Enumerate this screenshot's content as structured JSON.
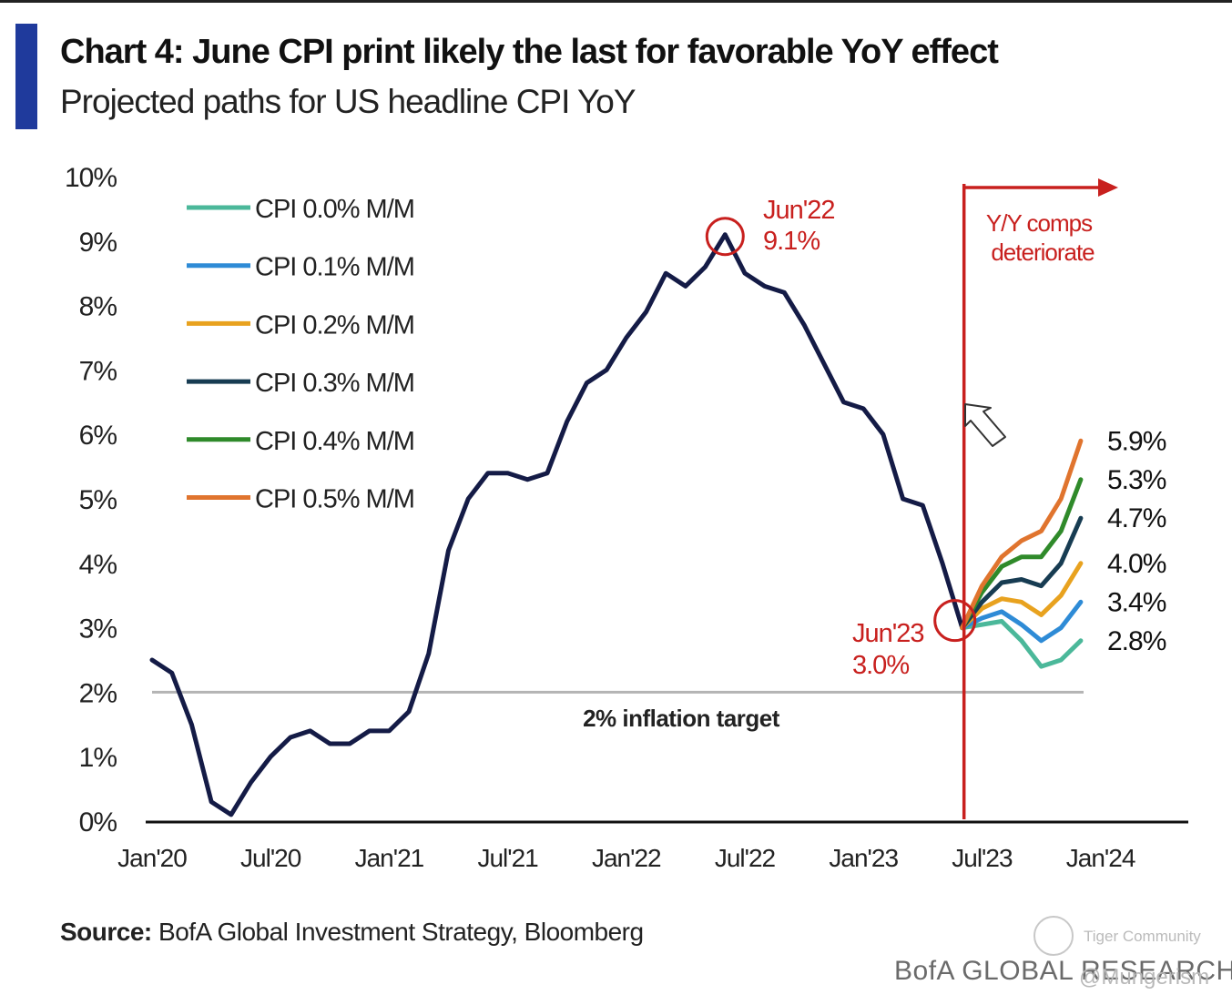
{
  "header": {
    "title": "Chart 4: June CPI print likely the last for favorable YoY effect",
    "subtitle": "Projected paths for US headline CPI YoY",
    "accent_color": "#1f3a9c"
  },
  "footer": {
    "source_label": "Source:",
    "source_text": "BofA Global Investment Strategy, Bloomberg",
    "brand": "BofA GLOBAL RESEARCH",
    "watermark": "Tiger Community",
    "watermark_handle": "@Mungerism"
  },
  "chart_data": {
    "type": "line",
    "title": "Chart 4: June CPI print likely the last for favorable YoY effect",
    "subtitle": "Projected paths for US headline CPI YoY",
    "xlabel": "",
    "ylabel": "",
    "ylim": [
      0,
      10
    ],
    "xlim": [
      "Jan'20",
      "Jan'24"
    ],
    "y_ticks": [
      "0%",
      "1%",
      "2%",
      "3%",
      "4%",
      "5%",
      "6%",
      "7%",
      "8%",
      "9%",
      "10%"
    ],
    "x_ticks": [
      "Jan'20",
      "Jul'20",
      "Jan'21",
      "Jul'21",
      "Jan'22",
      "Jul'22",
      "Jan'23",
      "Jul'23",
      "Jan'24"
    ],
    "grid": false,
    "legend_position": "top-left",
    "colors": {
      "history": "#141b46",
      "target": "#b4b4b4",
      "annotation": "#c8201e"
    },
    "history": {
      "x": [
        "2020-01",
        "2020-02",
        "2020-03",
        "2020-04",
        "2020-05",
        "2020-06",
        "2020-07",
        "2020-08",
        "2020-09",
        "2020-10",
        "2020-11",
        "2020-12",
        "2021-01",
        "2021-02",
        "2021-03",
        "2021-04",
        "2021-05",
        "2021-06",
        "2021-07",
        "2021-08",
        "2021-09",
        "2021-10",
        "2021-11",
        "2021-12",
        "2022-01",
        "2022-02",
        "2022-03",
        "2022-04",
        "2022-05",
        "2022-06",
        "2022-07",
        "2022-08",
        "2022-09",
        "2022-10",
        "2022-11",
        "2022-12",
        "2023-01",
        "2023-02",
        "2023-03",
        "2023-04",
        "2023-05",
        "2023-06"
      ],
      "values": [
        2.5,
        2.3,
        1.5,
        0.3,
        0.1,
        0.6,
        1.0,
        1.3,
        1.4,
        1.2,
        1.2,
        1.4,
        1.4,
        1.7,
        2.6,
        4.2,
        5.0,
        5.4,
        5.4,
        5.3,
        5.4,
        6.2,
        6.8,
        7.0,
        7.5,
        7.9,
        8.5,
        8.3,
        8.6,
        9.1,
        8.5,
        8.3,
        8.2,
        7.7,
        7.1,
        6.5,
        6.4,
        6.0,
        5.0,
        4.9,
        4.0,
        3.0
      ]
    },
    "projection_x": [
      "2023-06",
      "2023-07",
      "2023-08",
      "2023-09",
      "2023-10",
      "2023-11",
      "2023-12"
    ],
    "series": [
      {
        "name": "CPI 0.0% M/M",
        "color": "#4bb89a",
        "values": [
          3.0,
          3.05,
          3.1,
          2.8,
          2.4,
          2.5,
          2.8
        ],
        "end_label": "2.8%"
      },
      {
        "name": "CPI 0.1% M/M",
        "color": "#2e8bd6",
        "values": [
          3.0,
          3.15,
          3.25,
          3.05,
          2.8,
          3.0,
          3.4
        ],
        "end_label": "3.4%"
      },
      {
        "name": "CPI 0.2% M/M",
        "color": "#e8a21f",
        "values": [
          3.0,
          3.3,
          3.45,
          3.4,
          3.2,
          3.5,
          4.0
        ],
        "end_label": "4.0%"
      },
      {
        "name": "CPI 0.3% M/M",
        "color": "#173c52",
        "values": [
          3.0,
          3.4,
          3.7,
          3.75,
          3.65,
          4.0,
          4.7
        ],
        "end_label": "4.7%"
      },
      {
        "name": "CPI 0.4% M/M",
        "color": "#2f8a2a",
        "values": [
          3.0,
          3.55,
          3.95,
          4.1,
          4.1,
          4.5,
          5.3
        ],
        "end_label": "5.3%"
      },
      {
        "name": "CPI 0.5% M/M",
        "color": "#e0742e",
        "values": [
          3.0,
          3.65,
          4.1,
          4.35,
          4.5,
          5.0,
          5.9
        ],
        "end_label": "5.9%"
      }
    ],
    "target_line": {
      "value": 2.0,
      "label": "2% inflation target"
    },
    "annotations": [
      {
        "label": "Jun'22",
        "value_label": "9.1%",
        "x": "2022-06",
        "y": 9.1
      },
      {
        "label": "Jun'23",
        "value_label": "3.0%",
        "x": "2023-06",
        "y": 3.0
      },
      {
        "label": "Y/Y comps",
        "label2": "deteriorate",
        "x": "2023-06"
      }
    ]
  }
}
